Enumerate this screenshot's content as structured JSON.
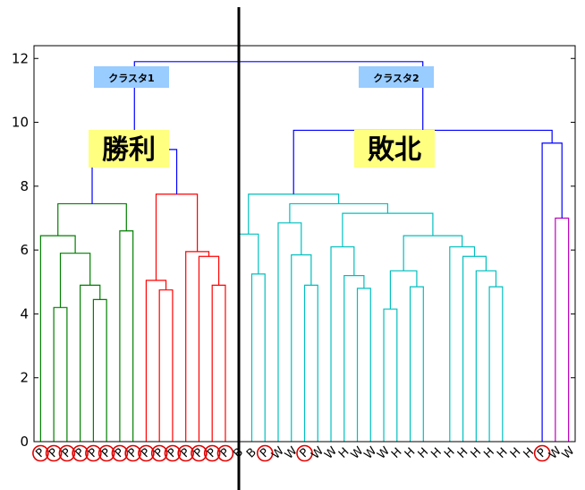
{
  "chart_data": {
    "type": "dendrogram",
    "y_ticks": [
      "0",
      "2",
      "4",
      "6",
      "8",
      "10",
      "12"
    ],
    "ylim": [
      0,
      12.4
    ],
    "annotations": {
      "cluster1": "クラスタ1",
      "cluster2": "クラスタ2",
      "win": "勝利",
      "loss": "敗北"
    },
    "label_bg_color": "#99ccff",
    "highlight_color": "#ffff80",
    "circle_color": "#e00000",
    "colors": {
      "green": "#007f00",
      "red": "#ff0000",
      "cyan": "#00bfbf",
      "magenta": "#bf00bf",
      "blue": "#0000ff"
    },
    "leaves": [
      "P",
      "P",
      "P",
      "P",
      "P",
      "P",
      "P",
      "P",
      "P",
      "P",
      "P",
      "P",
      "P",
      "P",
      "P",
      "B",
      "B",
      "P",
      "W",
      "W",
      "P",
      "W",
      "W",
      "H",
      "W",
      "W",
      "W",
      "H",
      "H",
      "H",
      "H",
      "H",
      "H",
      "H",
      "H",
      "H",
      "H",
      "H",
      "P",
      "W",
      "W"
    ],
    "circled": [
      0,
      1,
      2,
      3,
      4,
      5,
      6,
      7,
      8,
      9,
      10,
      11,
      12,
      13,
      14,
      17,
      20,
      38
    ],
    "links": [
      {
        "a": 1,
        "b": 2,
        "h": 4.2,
        "c": "green"
      },
      {
        "a": 4,
        "b": 5,
        "h": 4.45,
        "c": "green"
      },
      {
        "a": 3,
        "b": "L1",
        "h": 4.9,
        "c": "green"
      },
      {
        "a": "L0",
        "b": "L2",
        "h": 5.9,
        "c": "green"
      },
      {
        "a": 0,
        "b": "L3",
        "h": 6.45,
        "c": "green"
      },
      {
        "a": 6,
        "b": 7,
        "h": 6.6,
        "c": "green"
      },
      {
        "a": "L4",
        "b": "L5",
        "h": 7.45,
        "c": "green"
      },
      {
        "a": 9,
        "b": 10,
        "h": 4.75,
        "c": "red"
      },
      {
        "a": 8,
        "b": "L7",
        "h": 5.05,
        "c": "red"
      },
      {
        "a": 13,
        "b": 14,
        "h": 4.9,
        "c": "red"
      },
      {
        "a": 12,
        "b": "L9",
        "h": 5.8,
        "c": "red"
      },
      {
        "a": 11,
        "b": "L10",
        "h": 5.95,
        "c": "red"
      },
      {
        "a": "L8",
        "b": "L11",
        "h": 7.75,
        "c": "red"
      },
      {
        "a": "L6",
        "b": "L12",
        "h": 9.15,
        "c": "blue"
      },
      {
        "a": 16,
        "b": 17,
        "h": 5.25,
        "c": "cyan"
      },
      {
        "a": 15,
        "b": "L14",
        "h": 6.5,
        "c": "cyan"
      },
      {
        "a": 20,
        "b": 21,
        "h": 4.9,
        "c": "cyan"
      },
      {
        "a": 19,
        "b": "L16",
        "h": 5.85,
        "c": "cyan"
      },
      {
        "a": 18,
        "b": "L17",
        "h": 6.85,
        "c": "cyan"
      },
      {
        "a": 24,
        "b": 25,
        "h": 4.8,
        "c": "cyan"
      },
      {
        "a": 23,
        "b": "L19",
        "h": 5.2,
        "c": "cyan"
      },
      {
        "a": 22,
        "b": "L20",
        "h": 6.1,
        "c": "cyan"
      },
      {
        "a": 26,
        "b": 27,
        "h": 4.15,
        "c": "cyan"
      },
      {
        "a": 28,
        "b": 29,
        "h": 4.85,
        "c": "cyan"
      },
      {
        "a": "L22",
        "b": "L23",
        "h": 5.35,
        "c": "cyan"
      },
      {
        "a": 34,
        "b": 35,
        "h": 4.85,
        "c": "cyan"
      },
      {
        "a": 33,
        "b": "L25",
        "h": 5.35,
        "c": "cyan"
      },
      {
        "a": 32,
        "b": "L26",
        "h": 5.8,
        "c": "cyan"
      },
      {
        "a": 31,
        "b": "L27",
        "h": 6.1,
        "c": "cyan"
      },
      {
        "a": "L24",
        "b": "L28",
        "h": 6.45,
        "c": "cyan"
      },
      {
        "a": "L21",
        "b": "L29",
        "h": 7.15,
        "c": "cyan"
      },
      {
        "a": "L18",
        "b": "L30",
        "h": 7.45,
        "c": "cyan"
      },
      {
        "a": "L15",
        "b": "L31",
        "h": 7.75,
        "c": "cyan"
      },
      {
        "a": 39,
        "b": 40,
        "h": 7.0,
        "c": "magenta"
      },
      {
        "a": 38,
        "b": "L33",
        "h": 9.35,
        "c": "blue"
      },
      {
        "a": "L32",
        "b": "L34",
        "h": 9.75,
        "c": "blue"
      },
      {
        "a": "L13",
        "b": "L35",
        "h": 11.9,
        "c": "blue"
      }
    ]
  }
}
